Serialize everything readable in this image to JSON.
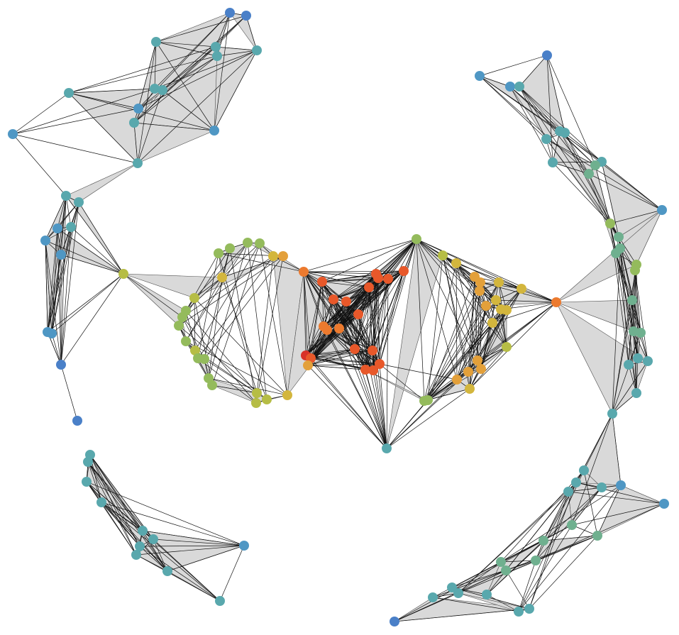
{
  "palette": {
    "blue": "#4a80c8",
    "steel": "#4f97c4",
    "teal": "#59a8ad",
    "green": "#6fb08f",
    "lime": "#94bb5c",
    "olive": "#b6bd45",
    "yellow": "#d3b63d",
    "amber": "#e3a03a",
    "orange": "#ec7a2e",
    "redorange": "#e8582a",
    "red": "#d8322a",
    "hull_fill": "#d9d9d9",
    "edge": "#111111"
  },
  "node_size": "small",
  "graph_type": "simplicial complex / mapper graph"
}
